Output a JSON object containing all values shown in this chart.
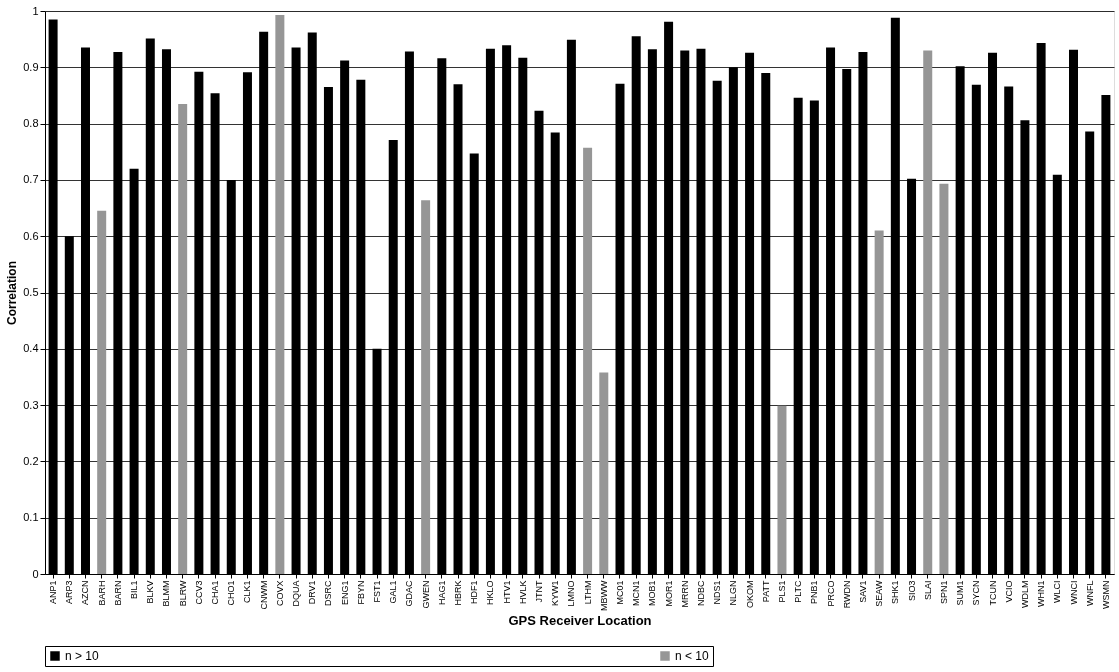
{
  "chart_data": {
    "type": "bar",
    "xlabel": "GPS Receiver Location",
    "ylabel": "Correlation",
    "categories": [
      "ANP1",
      "ARP3",
      "AZCN",
      "BARH",
      "BARN",
      "BIL1",
      "BLKV",
      "BLMM",
      "BLRW",
      "CCV3",
      "CHA1",
      "CHO1",
      "CLK1",
      "CNWM",
      "COVX",
      "DQUA",
      "DRV1",
      "DSRC",
      "ENG1",
      "FBYN",
      "FST1",
      "GAL1",
      "GDAC",
      "GWEN",
      "HAG1",
      "HBRK",
      "HDF1",
      "HKLO",
      "HTV1",
      "HVLK",
      "JTNT",
      "KYW1",
      "LMNO",
      "LTHM",
      "MBWW",
      "MC01",
      "MCN1",
      "MOB1",
      "MOR1",
      "MRRN",
      "NDBC",
      "NDS1",
      "NLGN",
      "OKOM",
      "PATT",
      "PLS1",
      "PLTC",
      "PNB1",
      "PRCO",
      "RWDN",
      "SAV1",
      "SEAW",
      "SHK1",
      "SIO3",
      "SLAI",
      "SPN1",
      "SUM1",
      "SYCN",
      "TCUN",
      "VCIO",
      "WDLM",
      "WHN1",
      "WLCI",
      "WNCI",
      "WNFL",
      "WSMN"
    ],
    "series": [
      {
        "name": "n > 10",
        "color": "#000000",
        "values": [
          0.985,
          0.6,
          0.935,
          null,
          0.927,
          0.72,
          0.951,
          0.932,
          null,
          0.892,
          0.854,
          0.7,
          0.891,
          0.963,
          null,
          0.935,
          0.962,
          0.865,
          0.912,
          0.878,
          0.4,
          0.771,
          0.928,
          null,
          0.916,
          0.87,
          0.747,
          0.933,
          0.939,
          0.917,
          0.823,
          0.784,
          0.949,
          null,
          null,
          0.871,
          0.955,
          0.932,
          0.981,
          0.93,
          0.933,
          0.876,
          0.9,
          0.926,
          0.89,
          null,
          0.846,
          0.841,
          0.935,
          0.897,
          0.927,
          null,
          0.988,
          0.702,
          null,
          null,
          0.902,
          0.869,
          0.926,
          0.866,
          0.806,
          0.943,
          0.709,
          0.931,
          0.786,
          0.851
        ]
      },
      {
        "name": "n < 10",
        "color": "#969696",
        "values": [
          null,
          null,
          null,
          0.645,
          null,
          null,
          null,
          null,
          0.835,
          null,
          null,
          null,
          null,
          null,
          0.993,
          null,
          null,
          null,
          null,
          null,
          null,
          null,
          null,
          0.664,
          null,
          null,
          null,
          null,
          null,
          null,
          null,
          null,
          null,
          0.757,
          0.358,
          null,
          null,
          null,
          null,
          null,
          null,
          null,
          null,
          null,
          null,
          0.299,
          null,
          null,
          null,
          null,
          null,
          0.61,
          null,
          null,
          0.93,
          0.693,
          null,
          null,
          null,
          null,
          null,
          null,
          null,
          null,
          null,
          null
        ]
      }
    ],
    "ylim": [
      0,
      1
    ],
    "yticks": [
      0,
      0.1,
      0.2,
      0.3,
      0.4,
      0.5,
      0.6,
      0.7,
      0.8,
      0.9,
      1
    ],
    "grid": "y",
    "legend": "bottom"
  }
}
